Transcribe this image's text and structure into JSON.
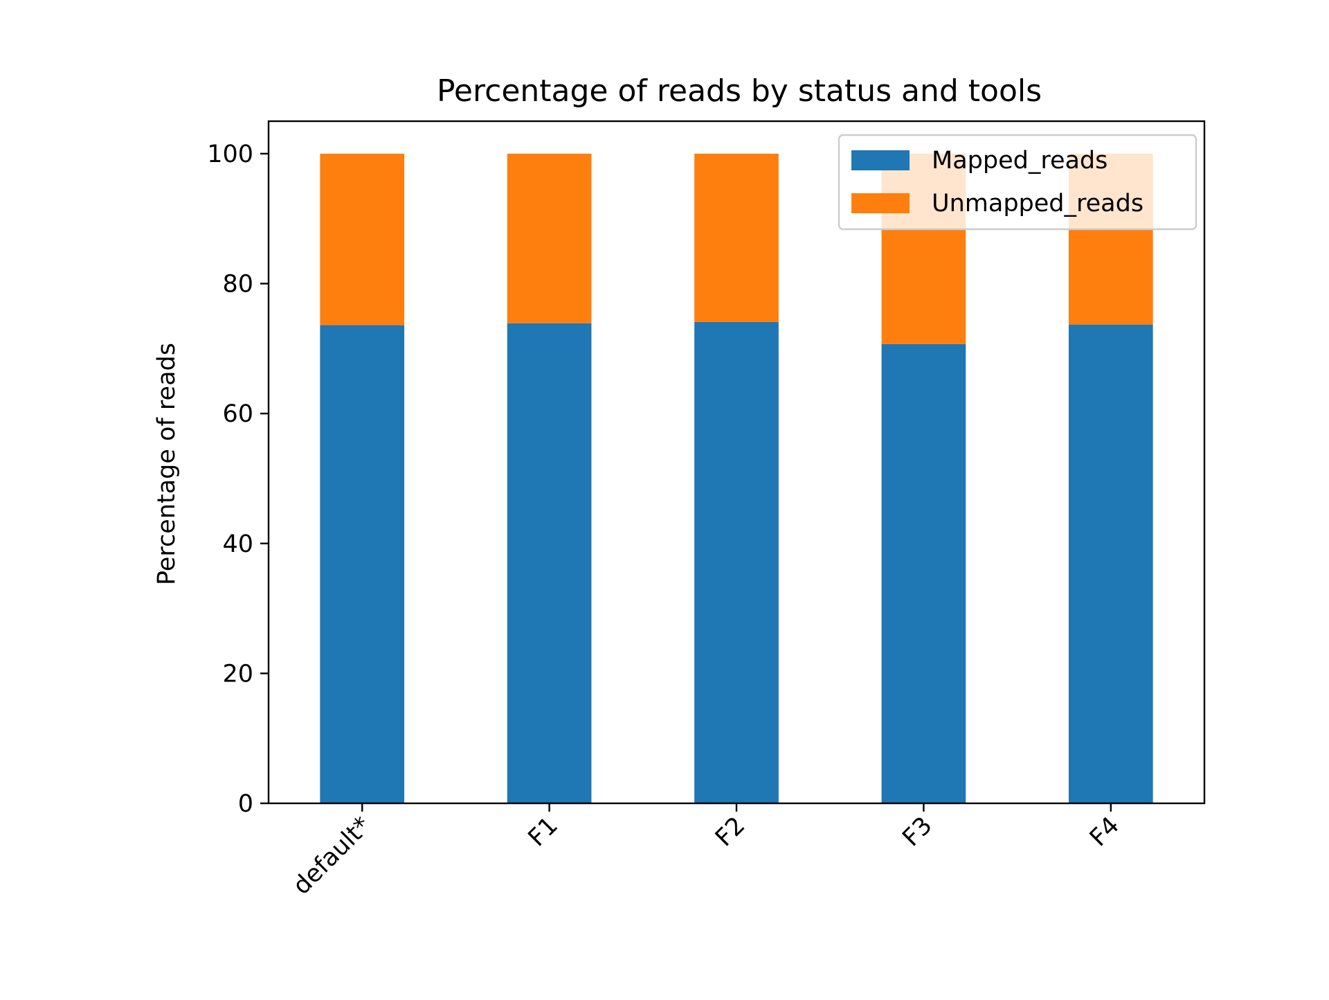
{
  "chart_data": {
    "type": "bar",
    "stacked": true,
    "title": "Percentage of reads by status and tools",
    "xlabel": "",
    "ylabel": "Percentage of reads",
    "categories": [
      "default*",
      "F1",
      "F2",
      "F3",
      "F4"
    ],
    "series": [
      {
        "name": "Mapped_reads",
        "color": "#1f77b4",
        "values": [
          73.6,
          73.9,
          74.1,
          70.7,
          73.7
        ]
      },
      {
        "name": "Unmapped_reads",
        "color": "#ff7f0e",
        "values": [
          26.4,
          26.1,
          25.9,
          29.3,
          26.3
        ]
      }
    ],
    "ylim": [
      0,
      105
    ],
    "yticks": [
      "0",
      "20",
      "40",
      "60",
      "80",
      "100"
    ],
    "grid": false,
    "legend": "top-right"
  }
}
